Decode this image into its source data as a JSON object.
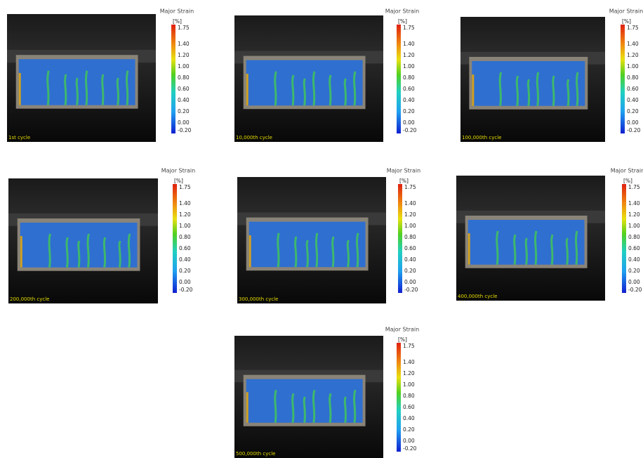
{
  "panels": [
    {
      "caption": "1st cycle",
      "legend": {
        "title": "Major Strain",
        "unit": "[%]",
        "ticks": [
          "1.75",
          "1.40",
          "1.20",
          "1.00",
          "0.80",
          "0.60",
          "0.40",
          "0.20",
          "0.00",
          "-0.20"
        ]
      }
    },
    {
      "caption": "10,000th cycle",
      "legend": {
        "title": "Major Strain",
        "unit": "[%]",
        "ticks": [
          "1.75",
          "1.40",
          "1.20",
          "1.00",
          "0.80",
          "0.60",
          "0.40",
          "0.20",
          "0.00",
          "-0.20"
        ]
      }
    },
    {
      "caption": "100,000th cycle",
      "legend": {
        "title": "Major Strain",
        "unit": "[%]",
        "ticks": [
          "1.75",
          "1.40",
          "1.20",
          "1.00",
          "0.80",
          "0.60",
          "0.40",
          "0.20",
          "0.00",
          "-0.20"
        ]
      }
    },
    {
      "caption": "200,000th cycle",
      "legend": {
        "title": "Major Strain",
        "unit": "[%]",
        "ticks": [
          "1.75",
          "1.40",
          "1.20",
          "1.00",
          "0.80",
          "0.60",
          "0.40",
          "0.20",
          "0.00",
          "-0.20"
        ]
      }
    },
    {
      "caption": "300,000th cycle",
      "legend": {
        "title": "Major Strain",
        "unit": "[%]",
        "ticks": [
          "1.75",
          "1.40",
          "1.20",
          "1.00",
          "0.80",
          "0.60",
          "0.40",
          "0.20",
          "0.00",
          "-0.20"
        ]
      }
    },
    {
      "caption": "400,000th cycle",
      "legend": {
        "title": "Major Strain",
        "unit": "[%]",
        "ticks": [
          "1.75",
          "1.40",
          "1.20",
          "1.00",
          "0.80",
          "0.60",
          "0.40",
          "0.20",
          "0.00",
          "-0.20"
        ]
      }
    },
    {
      "caption": "500,000th cycle",
      "legend": {
        "title": "Major Strain",
        "unit": "[%]",
        "ticks": [
          "1.75",
          "1.40",
          "1.20",
          "1.00",
          "0.80",
          "0.60",
          "0.40",
          "0.20",
          "0.00",
          "-0.20"
        ]
      }
    }
  ]
}
